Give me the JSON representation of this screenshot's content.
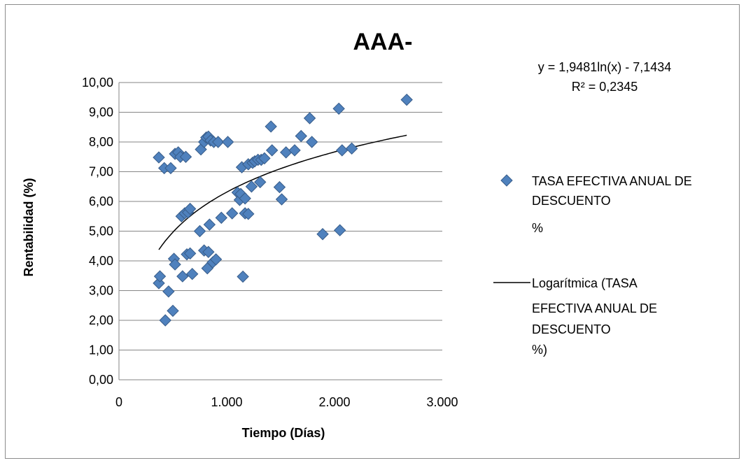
{
  "chart_data": {
    "type": "scatter",
    "title": "AAA-",
    "xlabel": "Tiempo (Días)",
    "ylabel": "Rentabilidad (%)",
    "xlim": [
      0,
      3000
    ],
    "ylim": [
      0,
      10
    ],
    "x_ticks": [
      "0",
      "1.000",
      "2.000",
      "3.000"
    ],
    "y_ticks": [
      "0,00",
      "1,00",
      "2,00",
      "3,00",
      "4,00",
      "5,00",
      "6,00",
      "7,00",
      "8,00",
      "9,00",
      "10,00"
    ],
    "grid": "horizontal",
    "legend_position": "right",
    "colors": {
      "marker": "#4f81bd",
      "marker_edge": "#385d8a",
      "trendline": "#000000",
      "gridline": "#868686"
    },
    "series": [
      {
        "name": "TASA EFECTIVA ANUAL DE DESCUENTO %",
        "legend_lines": [
          "TASA EFECTIVA ANUAL DE",
          "DESCUENTO",
          "%"
        ],
        "marker": "diamond",
        "points": [
          [
            370,
            7.48
          ],
          [
            420,
            7.12
          ],
          [
            480,
            7.12
          ],
          [
            520,
            7.6
          ],
          [
            550,
            7.65
          ],
          [
            570,
            7.5
          ],
          [
            620,
            7.5
          ],
          [
            760,
            7.75
          ],
          [
            790,
            8.0
          ],
          [
            810,
            8.15
          ],
          [
            830,
            8.18
          ],
          [
            850,
            8.05
          ],
          [
            880,
            8.0
          ],
          [
            920,
            8.0
          ],
          [
            1010,
            8.0
          ],
          [
            370,
            3.25
          ],
          [
            380,
            3.48
          ],
          [
            430,
            2.0
          ],
          [
            460,
            2.97
          ],
          [
            500,
            2.32
          ],
          [
            510,
            4.07
          ],
          [
            520,
            3.88
          ],
          [
            590,
            3.48
          ],
          [
            630,
            4.22
          ],
          [
            660,
            4.25
          ],
          [
            680,
            3.56
          ],
          [
            580,
            5.5
          ],
          [
            610,
            5.6
          ],
          [
            640,
            5.63
          ],
          [
            660,
            5.75
          ],
          [
            750,
            5.0
          ],
          [
            790,
            4.35
          ],
          [
            820,
            3.75
          ],
          [
            830,
            4.3
          ],
          [
            840,
            5.22
          ],
          [
            870,
            3.95
          ],
          [
            900,
            4.05
          ],
          [
            950,
            5.45
          ],
          [
            1050,
            5.6
          ],
          [
            1100,
            6.3
          ],
          [
            1120,
            6.05
          ],
          [
            1130,
            6.25
          ],
          [
            1140,
            7.15
          ],
          [
            1150,
            3.47
          ],
          [
            1170,
            5.6
          ],
          [
            1170,
            6.1
          ],
          [
            1200,
            5.58
          ],
          [
            1200,
            7.25
          ],
          [
            1230,
            6.5
          ],
          [
            1240,
            7.3
          ],
          [
            1260,
            7.35
          ],
          [
            1290,
            7.4
          ],
          [
            1310,
            6.65
          ],
          [
            1320,
            7.4
          ],
          [
            1350,
            7.45
          ],
          [
            1410,
            8.52
          ],
          [
            1420,
            7.72
          ],
          [
            1490,
            6.48
          ],
          [
            1510,
            6.07
          ],
          [
            1550,
            7.65
          ],
          [
            1630,
            7.72
          ],
          [
            1690,
            8.2
          ],
          [
            1770,
            8.8
          ],
          [
            1790,
            8.0
          ],
          [
            1890,
            4.9
          ],
          [
            2040,
            9.12
          ],
          [
            2050,
            5.03
          ],
          [
            2070,
            7.72
          ],
          [
            2160,
            7.78
          ],
          [
            2670,
            9.42
          ]
        ]
      }
    ],
    "trendline": {
      "name": "Logarítmica (TASA EFECTIVA ANUAL DE DESCUENTO %)",
      "legend_lines": [
        "Logarítmica (TASA",
        "EFECTIVA ANUAL DE",
        "DESCUENTO",
        "%)"
      ],
      "type": "logarithmic",
      "a": 1.9481,
      "b": -7.1434,
      "x_range": [
        370,
        2670
      ],
      "equation": "y = 1,9481ln(x) - 7,1434",
      "r_squared": "R² = 0,2345"
    }
  }
}
